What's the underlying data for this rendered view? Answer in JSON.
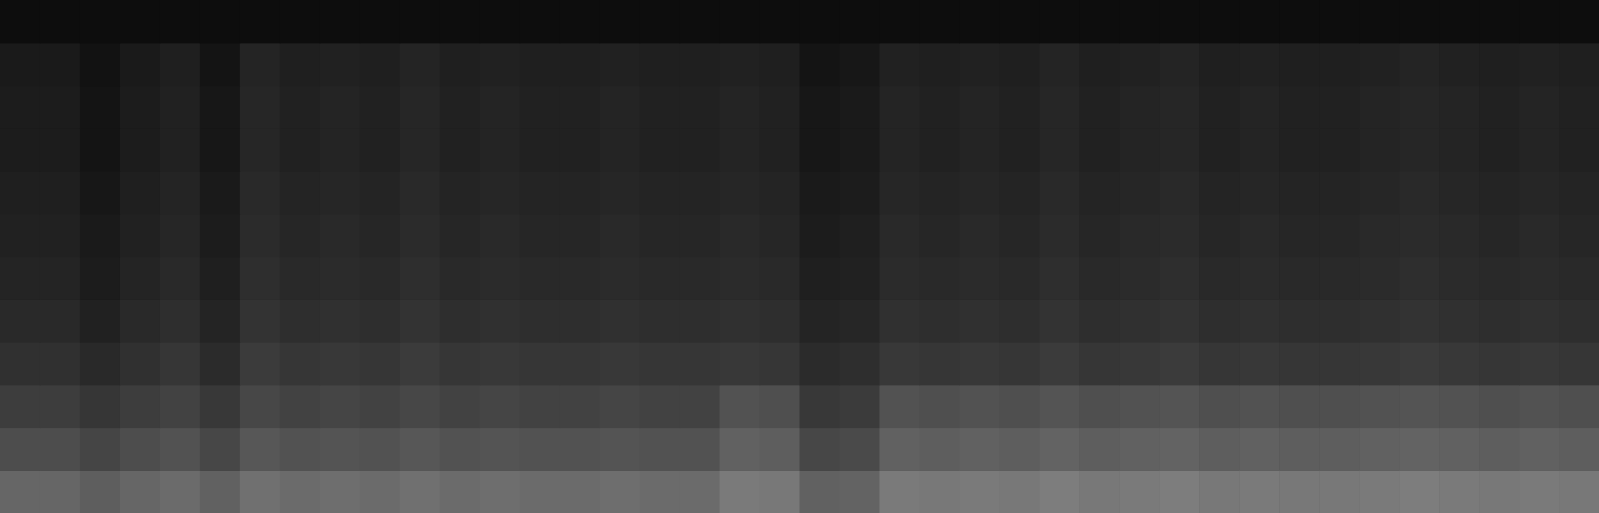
{
  "chart_data": {
    "type": "heatmap",
    "tick_labels": false,
    "xlim": [
      0,
      40
    ],
    "ylim": [
      0,
      12
    ],
    "color_range": [
      0,
      1
    ],
    "cells": [
      [
        0.4,
        0.4,
        0.37,
        0.4,
        0.42,
        0.38,
        0.44,
        0.42,
        0.43,
        0.42,
        0.44,
        0.42,
        0.43,
        0.42,
        0.42,
        0.43,
        0.42,
        0.42,
        0.48,
        0.47,
        0.38,
        0.39,
        0.48,
        0.47,
        0.48,
        0.47,
        0.49,
        0.47,
        0.48,
        0.49,
        0.47,
        0.48,
        0.47,
        0.47,
        0.48,
        0.49,
        0.48,
        0.47,
        0.48,
        0.47
      ],
      [
        0.3,
        0.3,
        0.27,
        0.3,
        0.32,
        0.28,
        0.34,
        0.32,
        0.33,
        0.32,
        0.34,
        0.32,
        0.33,
        0.32,
        0.32,
        0.33,
        0.32,
        0.32,
        0.38,
        0.37,
        0.28,
        0.29,
        0.38,
        0.37,
        0.38,
        0.37,
        0.39,
        0.37,
        0.38,
        0.39,
        0.37,
        0.38,
        0.37,
        0.37,
        0.38,
        0.39,
        0.38,
        0.37,
        0.38,
        0.37
      ],
      [
        0.24,
        0.24,
        0.21,
        0.24,
        0.26,
        0.22,
        0.28,
        0.26,
        0.27,
        0.26,
        0.28,
        0.26,
        0.27,
        0.26,
        0.26,
        0.27,
        0.26,
        0.26,
        0.32,
        0.31,
        0.22,
        0.23,
        0.32,
        0.31,
        0.32,
        0.31,
        0.33,
        0.31,
        0.32,
        0.33,
        0.31,
        0.32,
        0.31,
        0.31,
        0.32,
        0.33,
        0.32,
        0.31,
        0.32,
        0.31
      ],
      [
        0.19,
        0.19,
        0.16,
        0.19,
        0.21,
        0.17,
        0.23,
        0.21,
        0.22,
        0.21,
        0.23,
        0.21,
        0.22,
        0.21,
        0.21,
        0.22,
        0.21,
        0.21,
        0.22,
        0.21,
        0.17,
        0.18,
        0.22,
        0.21,
        0.22,
        0.21,
        0.23,
        0.21,
        0.22,
        0.23,
        0.21,
        0.22,
        0.21,
        0.21,
        0.22,
        0.23,
        0.22,
        0.21,
        0.22,
        0.21
      ],
      [
        0.16,
        0.16,
        0.13,
        0.16,
        0.18,
        0.14,
        0.2,
        0.18,
        0.19,
        0.18,
        0.2,
        0.18,
        0.19,
        0.18,
        0.18,
        0.19,
        0.18,
        0.18,
        0.19,
        0.18,
        0.14,
        0.15,
        0.19,
        0.18,
        0.19,
        0.18,
        0.2,
        0.18,
        0.19,
        0.2,
        0.18,
        0.19,
        0.18,
        0.18,
        0.19,
        0.2,
        0.19,
        0.18,
        0.19,
        0.18
      ],
      [
        0.14,
        0.14,
        0.11,
        0.14,
        0.16,
        0.12,
        0.18,
        0.16,
        0.17,
        0.16,
        0.18,
        0.16,
        0.17,
        0.16,
        0.16,
        0.17,
        0.16,
        0.16,
        0.17,
        0.16,
        0.12,
        0.13,
        0.17,
        0.16,
        0.17,
        0.16,
        0.18,
        0.16,
        0.17,
        0.18,
        0.16,
        0.17,
        0.16,
        0.16,
        0.17,
        0.18,
        0.17,
        0.16,
        0.17,
        0.16
      ],
      [
        0.13,
        0.13,
        0.1,
        0.13,
        0.15,
        0.11,
        0.17,
        0.15,
        0.16,
        0.15,
        0.17,
        0.15,
        0.16,
        0.15,
        0.15,
        0.16,
        0.15,
        0.15,
        0.16,
        0.15,
        0.11,
        0.12,
        0.16,
        0.15,
        0.16,
        0.15,
        0.17,
        0.15,
        0.16,
        0.17,
        0.15,
        0.16,
        0.15,
        0.15,
        0.16,
        0.17,
        0.16,
        0.15,
        0.16,
        0.15
      ],
      [
        0.12,
        0.12,
        0.09,
        0.12,
        0.14,
        0.1,
        0.16,
        0.14,
        0.15,
        0.14,
        0.16,
        0.14,
        0.15,
        0.14,
        0.14,
        0.15,
        0.14,
        0.14,
        0.15,
        0.14,
        0.1,
        0.11,
        0.15,
        0.14,
        0.15,
        0.14,
        0.16,
        0.14,
        0.15,
        0.16,
        0.14,
        0.15,
        0.14,
        0.14,
        0.15,
        0.16,
        0.15,
        0.14,
        0.15,
        0.14
      ],
      [
        0.11,
        0.11,
        0.08,
        0.11,
        0.13,
        0.09,
        0.15,
        0.13,
        0.14,
        0.13,
        0.15,
        0.13,
        0.14,
        0.13,
        0.13,
        0.14,
        0.13,
        0.13,
        0.14,
        0.13,
        0.09,
        0.1,
        0.14,
        0.13,
        0.14,
        0.13,
        0.15,
        0.13,
        0.14,
        0.15,
        0.13,
        0.14,
        0.13,
        0.13,
        0.14,
        0.15,
        0.14,
        0.13,
        0.14,
        0.13
      ],
      [
        0.11,
        0.11,
        0.08,
        0.11,
        0.13,
        0.09,
        0.15,
        0.13,
        0.14,
        0.13,
        0.15,
        0.13,
        0.14,
        0.13,
        0.13,
        0.14,
        0.13,
        0.13,
        0.14,
        0.13,
        0.09,
        0.1,
        0.14,
        0.13,
        0.14,
        0.13,
        0.15,
        0.13,
        0.14,
        0.15,
        0.13,
        0.14,
        0.13,
        0.13,
        0.14,
        0.15,
        0.14,
        0.13,
        0.14,
        0.13
      ],
      [
        0.1,
        0.1,
        0.07,
        0.1,
        0.12,
        0.08,
        0.14,
        0.12,
        0.13,
        0.12,
        0.14,
        0.12,
        0.13,
        0.12,
        0.12,
        0.13,
        0.12,
        0.12,
        0.13,
        0.12,
        0.08,
        0.09,
        0.13,
        0.12,
        0.13,
        0.12,
        0.14,
        0.12,
        0.13,
        0.14,
        0.12,
        0.13,
        0.12,
        0.12,
        0.13,
        0.14,
        0.13,
        0.12,
        0.13,
        0.12
      ],
      [
        0.05,
        0.05,
        0.05,
        0.05,
        0.05,
        0.05,
        0.05,
        0.05,
        0.05,
        0.05,
        0.05,
        0.05,
        0.05,
        0.05,
        0.05,
        0.05,
        0.05,
        0.05,
        0.05,
        0.05,
        0.05,
        0.05,
        0.05,
        0.05,
        0.05,
        0.05,
        0.05,
        0.05,
        0.05,
        0.05,
        0.05,
        0.05,
        0.05,
        0.05,
        0.05,
        0.05,
        0.05,
        0.05,
        0.05,
        0.05
      ]
    ]
  }
}
